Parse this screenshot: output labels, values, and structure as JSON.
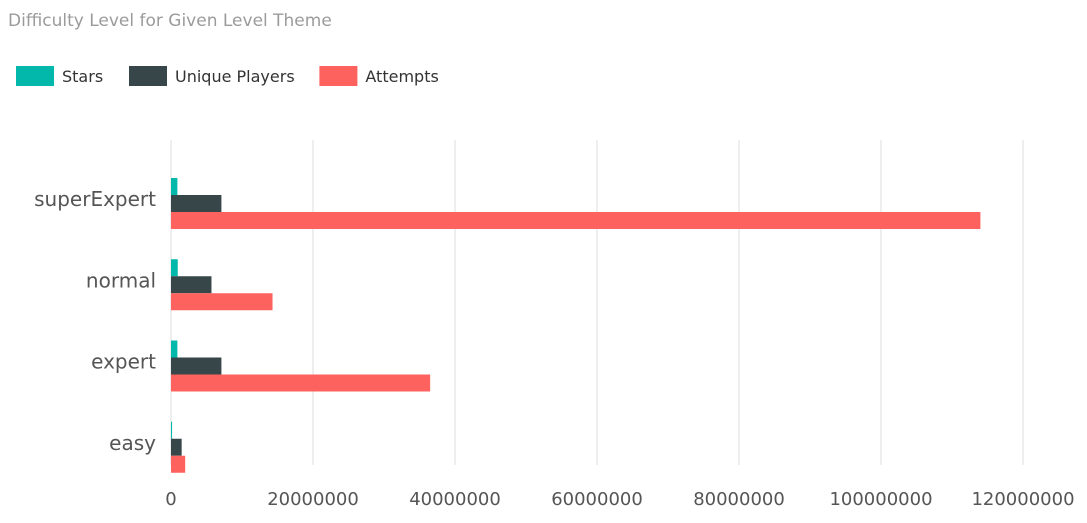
{
  "chart_data": {
    "type": "bar",
    "orientation": "horizontal",
    "title": "Difficulty Level for Given Level Theme",
    "categories": [
      "superExpert",
      "normal",
      "expert",
      "easy"
    ],
    "series": [
      {
        "name": "Stars",
        "color": "#01B8AA",
        "values": [
          900000,
          950000,
          900000,
          150000
        ]
      },
      {
        "name": "Unique Players",
        "color": "#374649",
        "values": [
          7100000,
          5700000,
          7100000,
          1500000
        ]
      },
      {
        "name": "Attempts",
        "color": "#FD625E",
        "values": [
          114000000,
          14300000,
          36500000,
          2000000
        ]
      }
    ],
    "xlim": [
      0,
      120000000
    ],
    "xticks": [
      0,
      20000000,
      40000000,
      60000000,
      80000000,
      100000000,
      120000000
    ],
    "xtick_labels": [
      "0",
      "20000000",
      "40000000",
      "60000000",
      "80000000",
      "100000000",
      "120000000"
    ],
    "xlabel": "",
    "ylabel": "",
    "grid": "vertical",
    "legend": "top-left",
    "colors": {
      "title": "#9b9b9b",
      "grid": "#dcdcdc",
      "tick_label": "#555555",
      "category_label": "#555555",
      "legend_text": "#333333"
    }
  }
}
